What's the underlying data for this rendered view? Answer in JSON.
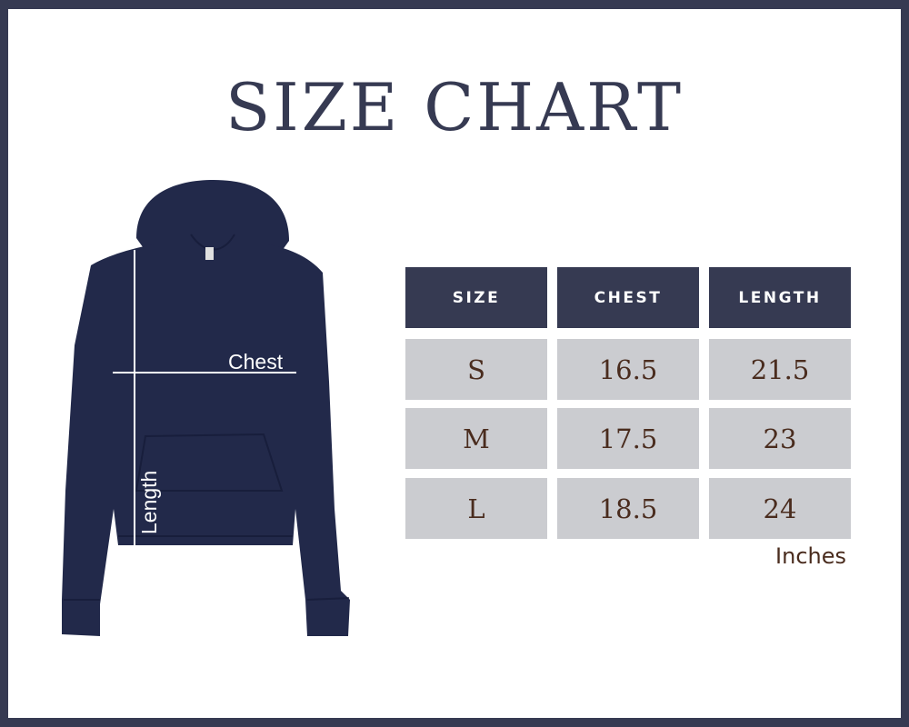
{
  "title": "SIZE CHART",
  "diagram": {
    "chest_label": "Chest",
    "length_label": "Length",
    "garment_color": "#22294a"
  },
  "table": {
    "headers": [
      "SIZE",
      "CHEST",
      "LENGTH"
    ],
    "rows": [
      [
        "S",
        "16.5",
        "21.5"
      ],
      [
        "M",
        "17.5",
        "23"
      ],
      [
        "L",
        "18.5",
        "24"
      ]
    ],
    "unit": "Inches"
  },
  "colors": {
    "frame": "#363a52",
    "header_bg": "#363a52",
    "cell_bg": "#cbccd0",
    "value_text": "#4a2c1e"
  }
}
